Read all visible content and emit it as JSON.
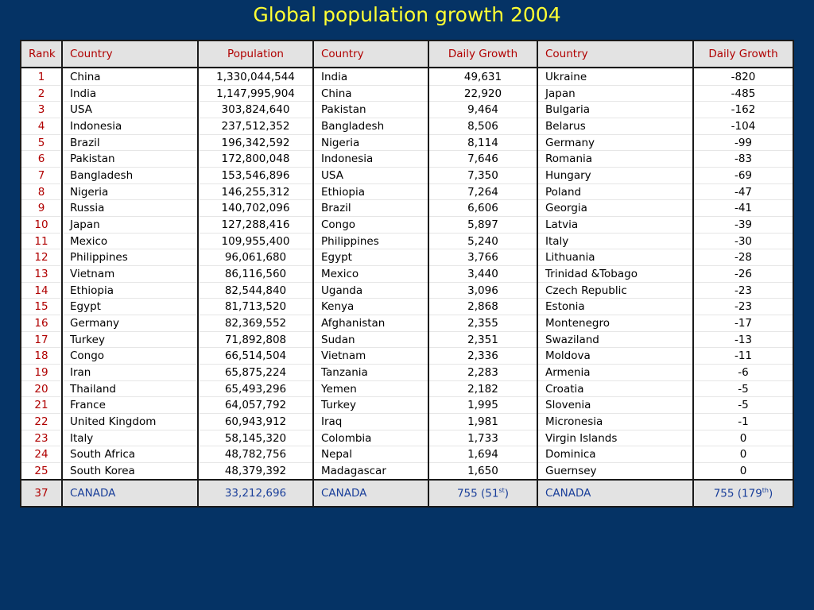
{
  "title": "Global population growth 2004",
  "table": {
    "header": [
      "Rank",
      "Country",
      "Population",
      "Country",
      "Daily Growth",
      "Country",
      "Daily Growth"
    ],
    "rows": [
      [
        "1",
        "China",
        "1,330,044,544",
        "India",
        "49,631",
        "Ukraine",
        "-820"
      ],
      [
        "2",
        "India",
        "1,147,995,904",
        "China",
        "22,920",
        "Japan",
        "-485"
      ],
      [
        "3",
        "USA",
        "303,824,640",
        "Pakistan",
        "9,464",
        "Bulgaria",
        "-162"
      ],
      [
        "4",
        "Indonesia",
        "237,512,352",
        "Bangladesh",
        "8,506",
        "Belarus",
        "-104"
      ],
      [
        "5",
        "Brazil",
        "196,342,592",
        "Nigeria",
        "8,114",
        "Germany",
        "-99"
      ],
      [
        "6",
        "Pakistan",
        "172,800,048",
        "Indonesia",
        "7,646",
        "Romania",
        "-83"
      ],
      [
        "7",
        "Bangladesh",
        "153,546,896",
        "USA",
        "7,350",
        "Hungary",
        "-69"
      ],
      [
        "8",
        "Nigeria",
        "146,255,312",
        "Ethiopia",
        "7,264",
        "Poland",
        "-47"
      ],
      [
        "9",
        "Russia",
        "140,702,096",
        "Brazil",
        "6,606",
        "Georgia",
        "-41"
      ],
      [
        "10",
        "Japan",
        "127,288,416",
        "Congo",
        "5,897",
        "Latvia",
        "-39"
      ],
      [
        "11",
        "Mexico",
        "109,955,400",
        "Philippines",
        "5,240",
        "Italy",
        "-30"
      ],
      [
        "12",
        "Philippines",
        "96,061,680",
        "Egypt",
        "3,766",
        "Lithuania",
        "-28"
      ],
      [
        "13",
        "Vietnam",
        "86,116,560",
        "Mexico",
        "3,440",
        "Trinidad &Tobago",
        "-26"
      ],
      [
        "14",
        "Ethiopia",
        "82,544,840",
        "Uganda",
        "3,096",
        "Czech Republic",
        "-23"
      ],
      [
        "15",
        "Egypt",
        "81,713,520",
        "Kenya",
        "2,868",
        "Estonia",
        "-23"
      ],
      [
        "16",
        "Germany",
        "82,369,552",
        "Afghanistan",
        "2,355",
        "Montenegro",
        "-17"
      ],
      [
        "17",
        "Turkey",
        "71,892,808",
        "Sudan",
        "2,351",
        "Swaziland",
        "-13"
      ],
      [
        "18",
        "Congo",
        "66,514,504",
        "Vietnam",
        "2,336",
        "Moldova",
        "-11"
      ],
      [
        "19",
        "Iran",
        "65,875,224",
        "Tanzania",
        "2,283",
        "Armenia",
        "-6"
      ],
      [
        "20",
        "Thailand",
        "65,493,296",
        "Yemen",
        "2,182",
        "Croatia",
        "-5"
      ],
      [
        "21",
        "France",
        "64,057,792",
        "Turkey",
        "1,995",
        "Slovenia",
        "-5"
      ],
      [
        "22",
        "United Kingdom",
        "60,943,912",
        "Iraq",
        "1,981",
        "Micronesia",
        "-1"
      ],
      [
        "23",
        "Italy",
        "58,145,320",
        "Colombia",
        "1,733",
        "Virgin Islands",
        "0"
      ],
      [
        "24",
        "South Africa",
        "48,782,756",
        "Nepal",
        "1,694",
        "Dominica",
        "0"
      ],
      [
        "25",
        "South Korea",
        "48,379,392",
        "Madagascar",
        "1,650",
        "Guernsey",
        "0"
      ]
    ],
    "footer": [
      "37",
      "CANADA",
      "33,212,696",
      "CANADA",
      {
        "text": "755 (51",
        "sup": "st",
        "end": ")"
      },
      "CANADA",
      {
        "text": "755 (179",
        "sup": "th",
        "end": ")"
      }
    ]
  }
}
